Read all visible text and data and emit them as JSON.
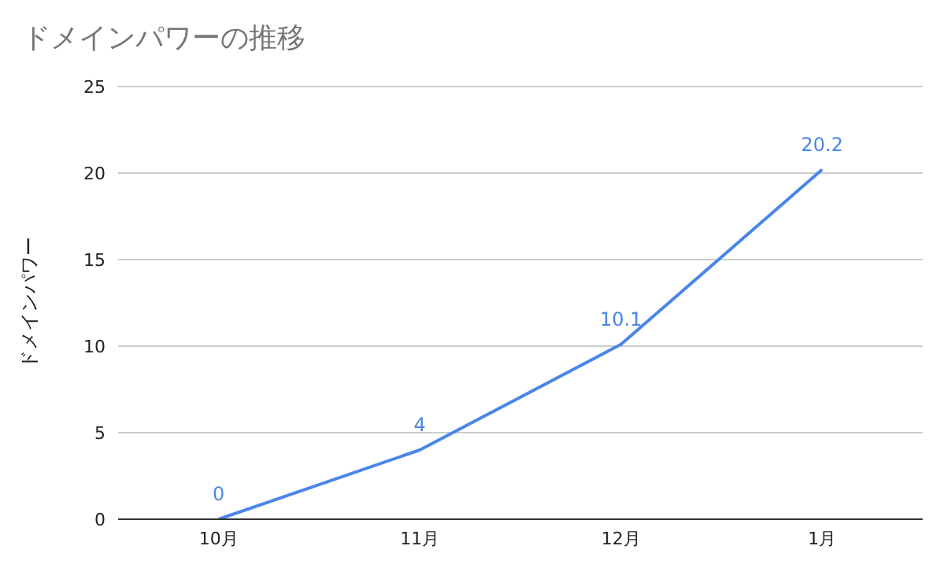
{
  "chart_data": {
    "type": "line",
    "title": "ドメインパワーの推移",
    "ylabel": "ドメインパワー",
    "categories": [
      "10月",
      "11月",
      "12月",
      "1月"
    ],
    "series": [
      {
        "color": "#4a86e8",
        "values": [
          0,
          4,
          10.1,
          20.2
        ]
      }
    ],
    "ylim": [
      0,
      25
    ],
    "yticks": [
      0,
      5,
      10,
      15,
      20,
      25
    ],
    "grid": "y",
    "legend": false,
    "marker": "none",
    "line_style": "solid",
    "data_labels": true
  }
}
